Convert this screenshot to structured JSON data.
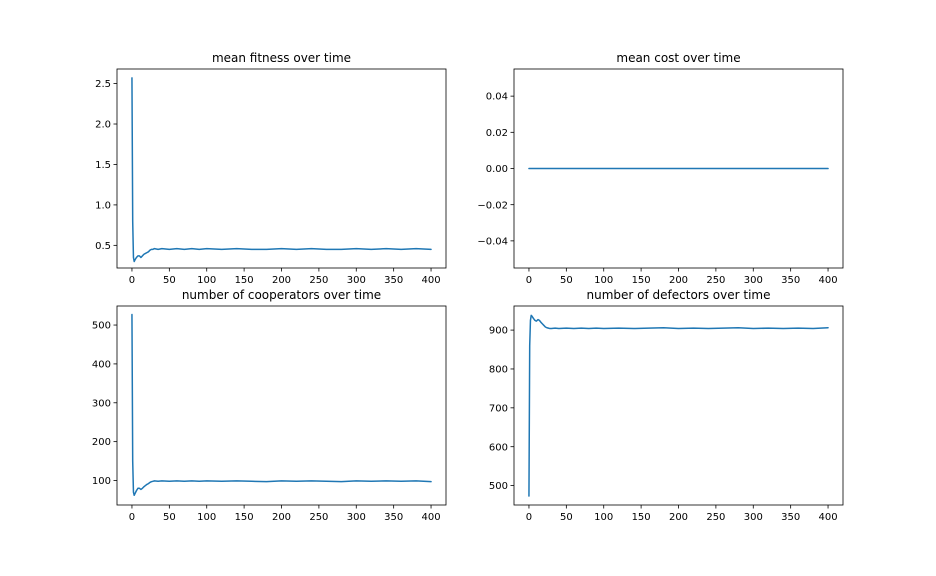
{
  "colors": {
    "series": "#1f77b4",
    "background": "#ffffff"
  },
  "chart_data": [
    {
      "type": "line",
      "title": "mean fitness over time",
      "xlabel": "",
      "ylabel": "",
      "xlim": [
        -20,
        420
      ],
      "ylim": [
        0.22,
        2.68
      ],
      "xticks": [
        0,
        50,
        100,
        150,
        200,
        250,
        300,
        350,
        400
      ],
      "yticks": [
        0.5,
        1.0,
        1.5,
        2.0,
        2.5
      ],
      "ytick_labels": [
        "0.5",
        "1.0",
        "1.5",
        "2.0",
        "2.5"
      ],
      "grid": false,
      "series": [
        {
          "x": [
            0,
            1,
            2,
            3,
            4,
            6,
            8,
            10,
            12,
            14,
            16,
            18,
            20,
            22,
            24,
            26,
            28,
            30,
            35,
            40,
            50,
            60,
            70,
            80,
            90,
            100,
            120,
            140,
            160,
            180,
            200,
            220,
            240,
            260,
            280,
            300,
            320,
            340,
            360,
            380,
            400
          ],
          "y": [
            2.57,
            0.8,
            0.35,
            0.3,
            0.32,
            0.35,
            0.37,
            0.37,
            0.35,
            0.37,
            0.39,
            0.4,
            0.41,
            0.42,
            0.44,
            0.45,
            0.45,
            0.46,
            0.45,
            0.46,
            0.45,
            0.46,
            0.45,
            0.46,
            0.45,
            0.46,
            0.45,
            0.46,
            0.45,
            0.45,
            0.46,
            0.45,
            0.46,
            0.45,
            0.45,
            0.46,
            0.45,
            0.46,
            0.45,
            0.46,
            0.45
          ]
        }
      ]
    },
    {
      "type": "line",
      "title": "mean cost over time",
      "xlabel": "",
      "ylabel": "",
      "xlim": [
        -20,
        420
      ],
      "ylim": [
        -0.055,
        0.055
      ],
      "xticks": [
        0,
        50,
        100,
        150,
        200,
        250,
        300,
        350,
        400
      ],
      "yticks": [
        -0.04,
        -0.02,
        0.0,
        0.02,
        0.04
      ],
      "ytick_labels": [
        "−0.04",
        "−0.02",
        "0.00",
        "0.02",
        "0.04"
      ],
      "grid": false,
      "series": [
        {
          "x": [
            0,
            400
          ],
          "y": [
            0,
            0
          ]
        }
      ]
    },
    {
      "type": "line",
      "title": "number of cooperators over time",
      "xlabel": "",
      "ylabel": "",
      "xlim": [
        -20,
        420
      ],
      "ylim": [
        37,
        549
      ],
      "xticks": [
        0,
        50,
        100,
        150,
        200,
        250,
        300,
        350,
        400
      ],
      "yticks": [
        100,
        200,
        300,
        400,
        500
      ],
      "ytick_labels": [
        "100",
        "200",
        "300",
        "400",
        "500"
      ],
      "grid": false,
      "series": [
        {
          "x": [
            0,
            1,
            2,
            3,
            4,
            6,
            8,
            10,
            12,
            14,
            16,
            18,
            20,
            22,
            24,
            26,
            28,
            30,
            35,
            40,
            50,
            60,
            70,
            80,
            90,
            100,
            120,
            140,
            160,
            180,
            200,
            220,
            240,
            260,
            280,
            300,
            320,
            340,
            360,
            380,
            400
          ],
          "y": [
            527,
            150,
            70,
            62,
            66,
            74,
            80,
            80,
            77,
            80,
            84,
            87,
            90,
            92,
            95,
            97,
            98,
            99,
            98,
            99,
            98,
            99,
            98,
            99,
            98,
            99,
            98,
            99,
            98,
            97,
            99,
            98,
            99,
            98,
            97,
            99,
            98,
            99,
            98,
            99,
            97
          ]
        }
      ]
    },
    {
      "type": "line",
      "title": "number of defectors over time",
      "xlabel": "",
      "ylabel": "",
      "xlim": [
        -20,
        420
      ],
      "ylim": [
        450,
        962
      ],
      "xticks": [
        0,
        50,
        100,
        150,
        200,
        250,
        300,
        350,
        400
      ],
      "yticks": [
        500,
        600,
        700,
        800,
        900
      ],
      "ytick_labels": [
        "500",
        "600",
        "700",
        "800",
        "900"
      ],
      "grid": false,
      "series": [
        {
          "x": [
            0,
            1,
            2,
            3,
            4,
            6,
            8,
            10,
            12,
            14,
            16,
            18,
            20,
            22,
            24,
            26,
            28,
            30,
            35,
            40,
            50,
            60,
            70,
            80,
            90,
            100,
            120,
            140,
            160,
            180,
            200,
            220,
            240,
            260,
            280,
            300,
            320,
            340,
            360,
            380,
            400
          ],
          "y": [
            473,
            860,
            925,
            938,
            936,
            930,
            925,
            923,
            927,
            925,
            920,
            916,
            912,
            908,
            906,
            905,
            904,
            904,
            905,
            904,
            905,
            904,
            905,
            904,
            905,
            904,
            905,
            904,
            905,
            906,
            904,
            905,
            904,
            905,
            906,
            904,
            905,
            904,
            905,
            904,
            906
          ]
        }
      ]
    }
  ]
}
